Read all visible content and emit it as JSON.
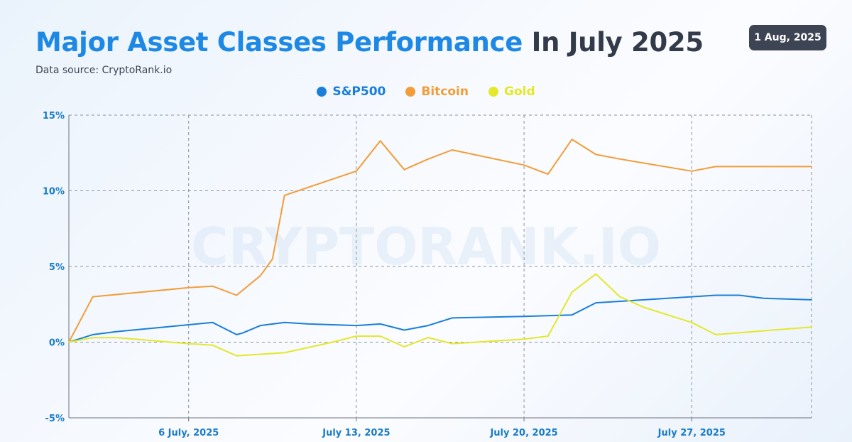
{
  "header": {
    "title_accent": "Major Asset Classes Performance",
    "title_rest": "In July 2025",
    "subtitle": "Data source: CryptoRank.io",
    "date_badge": "1 Aug, 2025"
  },
  "watermark": "CRYPTORANK.IO",
  "chart_data": {
    "type": "line",
    "title": "Major Asset Classes Performance In July 2025",
    "xlabel": "",
    "ylabel": "",
    "x_range": [
      "2025-07-01",
      "2025-08-01"
    ],
    "ylim": [
      -5,
      15
    ],
    "y_ticks": [
      {
        "value": 15,
        "label": "15%"
      },
      {
        "value": 10,
        "label": "10%"
      },
      {
        "value": 5,
        "label": "5%"
      },
      {
        "value": 0,
        "label": "0%"
      },
      {
        "value": -5,
        "label": "-5%"
      }
    ],
    "x_ticks": [
      {
        "date": "2025-07-06",
        "label": "6 July, 2025"
      },
      {
        "date": "2025-07-13",
        "label": "July 13, 2025"
      },
      {
        "date": "2025-07-20",
        "label": "July 20, 2025"
      },
      {
        "date": "2025-07-27",
        "label": "July 27, 2025"
      }
    ],
    "grid": true,
    "grid_style": "dashed",
    "legend_position": "top-center",
    "series": [
      {
        "name": "S&P500",
        "color": "#1a7fd9",
        "points": [
          {
            "date": "2025-07-01",
            "value": 0.0
          },
          {
            "date": "2025-07-02",
            "value": 0.5
          },
          {
            "date": "2025-07-03",
            "value": 0.7
          },
          {
            "date": "2025-07-05",
            "value": 1.0
          },
          {
            "date": "2025-07-07",
            "value": 1.3
          },
          {
            "date": "2025-07-08",
            "value": 0.5
          },
          {
            "date": "2025-07-08T06",
            "value": 0.6
          },
          {
            "date": "2025-07-09",
            "value": 1.1
          },
          {
            "date": "2025-07-10",
            "value": 1.3
          },
          {
            "date": "2025-07-11",
            "value": 1.2
          },
          {
            "date": "2025-07-13",
            "value": 1.1
          },
          {
            "date": "2025-07-14",
            "value": 1.2
          },
          {
            "date": "2025-07-15",
            "value": 0.8
          },
          {
            "date": "2025-07-16",
            "value": 1.1
          },
          {
            "date": "2025-07-17",
            "value": 1.6
          },
          {
            "date": "2025-07-20",
            "value": 1.7
          },
          {
            "date": "2025-07-22",
            "value": 1.8
          },
          {
            "date": "2025-07-23",
            "value": 2.6
          },
          {
            "date": "2025-07-25",
            "value": 2.8
          },
          {
            "date": "2025-07-27",
            "value": 3.0
          },
          {
            "date": "2025-07-28",
            "value": 3.1
          },
          {
            "date": "2025-07-29",
            "value": 3.1
          },
          {
            "date": "2025-07-30",
            "value": 2.9
          },
          {
            "date": "2025-08-01",
            "value": 2.8
          }
        ]
      },
      {
        "name": "Bitcoin",
        "color": "#f29d38",
        "points": [
          {
            "date": "2025-07-01",
            "value": 0.0
          },
          {
            "date": "2025-07-02",
            "value": 3.0
          },
          {
            "date": "2025-07-06",
            "value": 3.6
          },
          {
            "date": "2025-07-07",
            "value": 3.7
          },
          {
            "date": "2025-07-08",
            "value": 3.1
          },
          {
            "date": "2025-07-09",
            "value": 4.4
          },
          {
            "date": "2025-07-09T12",
            "value": 5.5
          },
          {
            "date": "2025-07-10",
            "value": 9.7
          },
          {
            "date": "2025-07-13",
            "value": 11.3
          },
          {
            "date": "2025-07-14",
            "value": 13.3
          },
          {
            "date": "2025-07-15",
            "value": 11.4
          },
          {
            "date": "2025-07-16",
            "value": 12.1
          },
          {
            "date": "2025-07-17",
            "value": 12.7
          },
          {
            "date": "2025-07-20",
            "value": 11.7
          },
          {
            "date": "2025-07-21",
            "value": 11.1
          },
          {
            "date": "2025-07-22",
            "value": 13.4
          },
          {
            "date": "2025-07-23",
            "value": 12.4
          },
          {
            "date": "2025-07-24",
            "value": 12.1
          },
          {
            "date": "2025-07-27",
            "value": 11.3
          },
          {
            "date": "2025-07-28",
            "value": 11.6
          },
          {
            "date": "2025-08-01",
            "value": 11.6
          }
        ]
      },
      {
        "name": "Gold",
        "color": "#e3e82a",
        "points": [
          {
            "date": "2025-07-01",
            "value": 0.0
          },
          {
            "date": "2025-07-02",
            "value": 0.3
          },
          {
            "date": "2025-07-03",
            "value": 0.3
          },
          {
            "date": "2025-07-06",
            "value": -0.1
          },
          {
            "date": "2025-07-07",
            "value": -0.2
          },
          {
            "date": "2025-07-08",
            "value": -0.9
          },
          {
            "date": "2025-07-09",
            "value": -0.8
          },
          {
            "date": "2025-07-10",
            "value": -0.7
          },
          {
            "date": "2025-07-12",
            "value": 0.0
          },
          {
            "date": "2025-07-13",
            "value": 0.4
          },
          {
            "date": "2025-07-14",
            "value": 0.4
          },
          {
            "date": "2025-07-15",
            "value": -0.3
          },
          {
            "date": "2025-07-16",
            "value": 0.3
          },
          {
            "date": "2025-07-17",
            "value": -0.1
          },
          {
            "date": "2025-07-20",
            "value": 0.2
          },
          {
            "date": "2025-07-21",
            "value": 0.4
          },
          {
            "date": "2025-07-22",
            "value": 3.3
          },
          {
            "date": "2025-07-23",
            "value": 4.5
          },
          {
            "date": "2025-07-24",
            "value": 3.0
          },
          {
            "date": "2025-07-25",
            "value": 2.3
          },
          {
            "date": "2025-07-27",
            "value": 1.3
          },
          {
            "date": "2025-07-28",
            "value": 0.5
          },
          {
            "date": "2025-08-01",
            "value": 1.0
          }
        ]
      }
    ]
  }
}
